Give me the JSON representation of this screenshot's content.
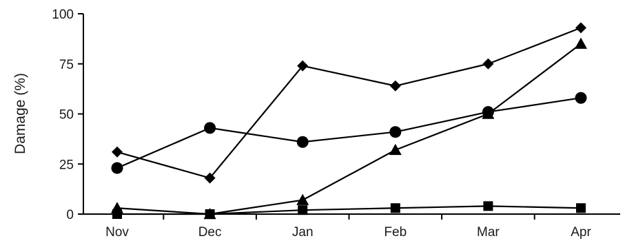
{
  "chart_data": {
    "type": "line",
    "categories": [
      "Nov",
      "Dec",
      "Jan",
      "Feb",
      "Mar",
      "Apr"
    ],
    "ylabel": "Damage (%)",
    "xlabel": "",
    "ylim": [
      0,
      100
    ],
    "yticks": [
      "0",
      "25",
      "50",
      "75",
      "100"
    ],
    "grid": false,
    "legend": "none",
    "series": [
      {
        "marker": "diamond",
        "color": "#000000",
        "values": [
          31,
          18,
          74,
          64,
          75,
          93
        ]
      },
      {
        "marker": "circle",
        "color": "#000000",
        "values": [
          23,
          43,
          36,
          41,
          51,
          58
        ]
      },
      {
        "marker": "triangle",
        "color": "#000000",
        "values": [
          3,
          0,
          7,
          32,
          50,
          85
        ]
      },
      {
        "marker": "square",
        "color": "#000000",
        "values": [
          0,
          0,
          2,
          3,
          4,
          3
        ]
      }
    ]
  }
}
